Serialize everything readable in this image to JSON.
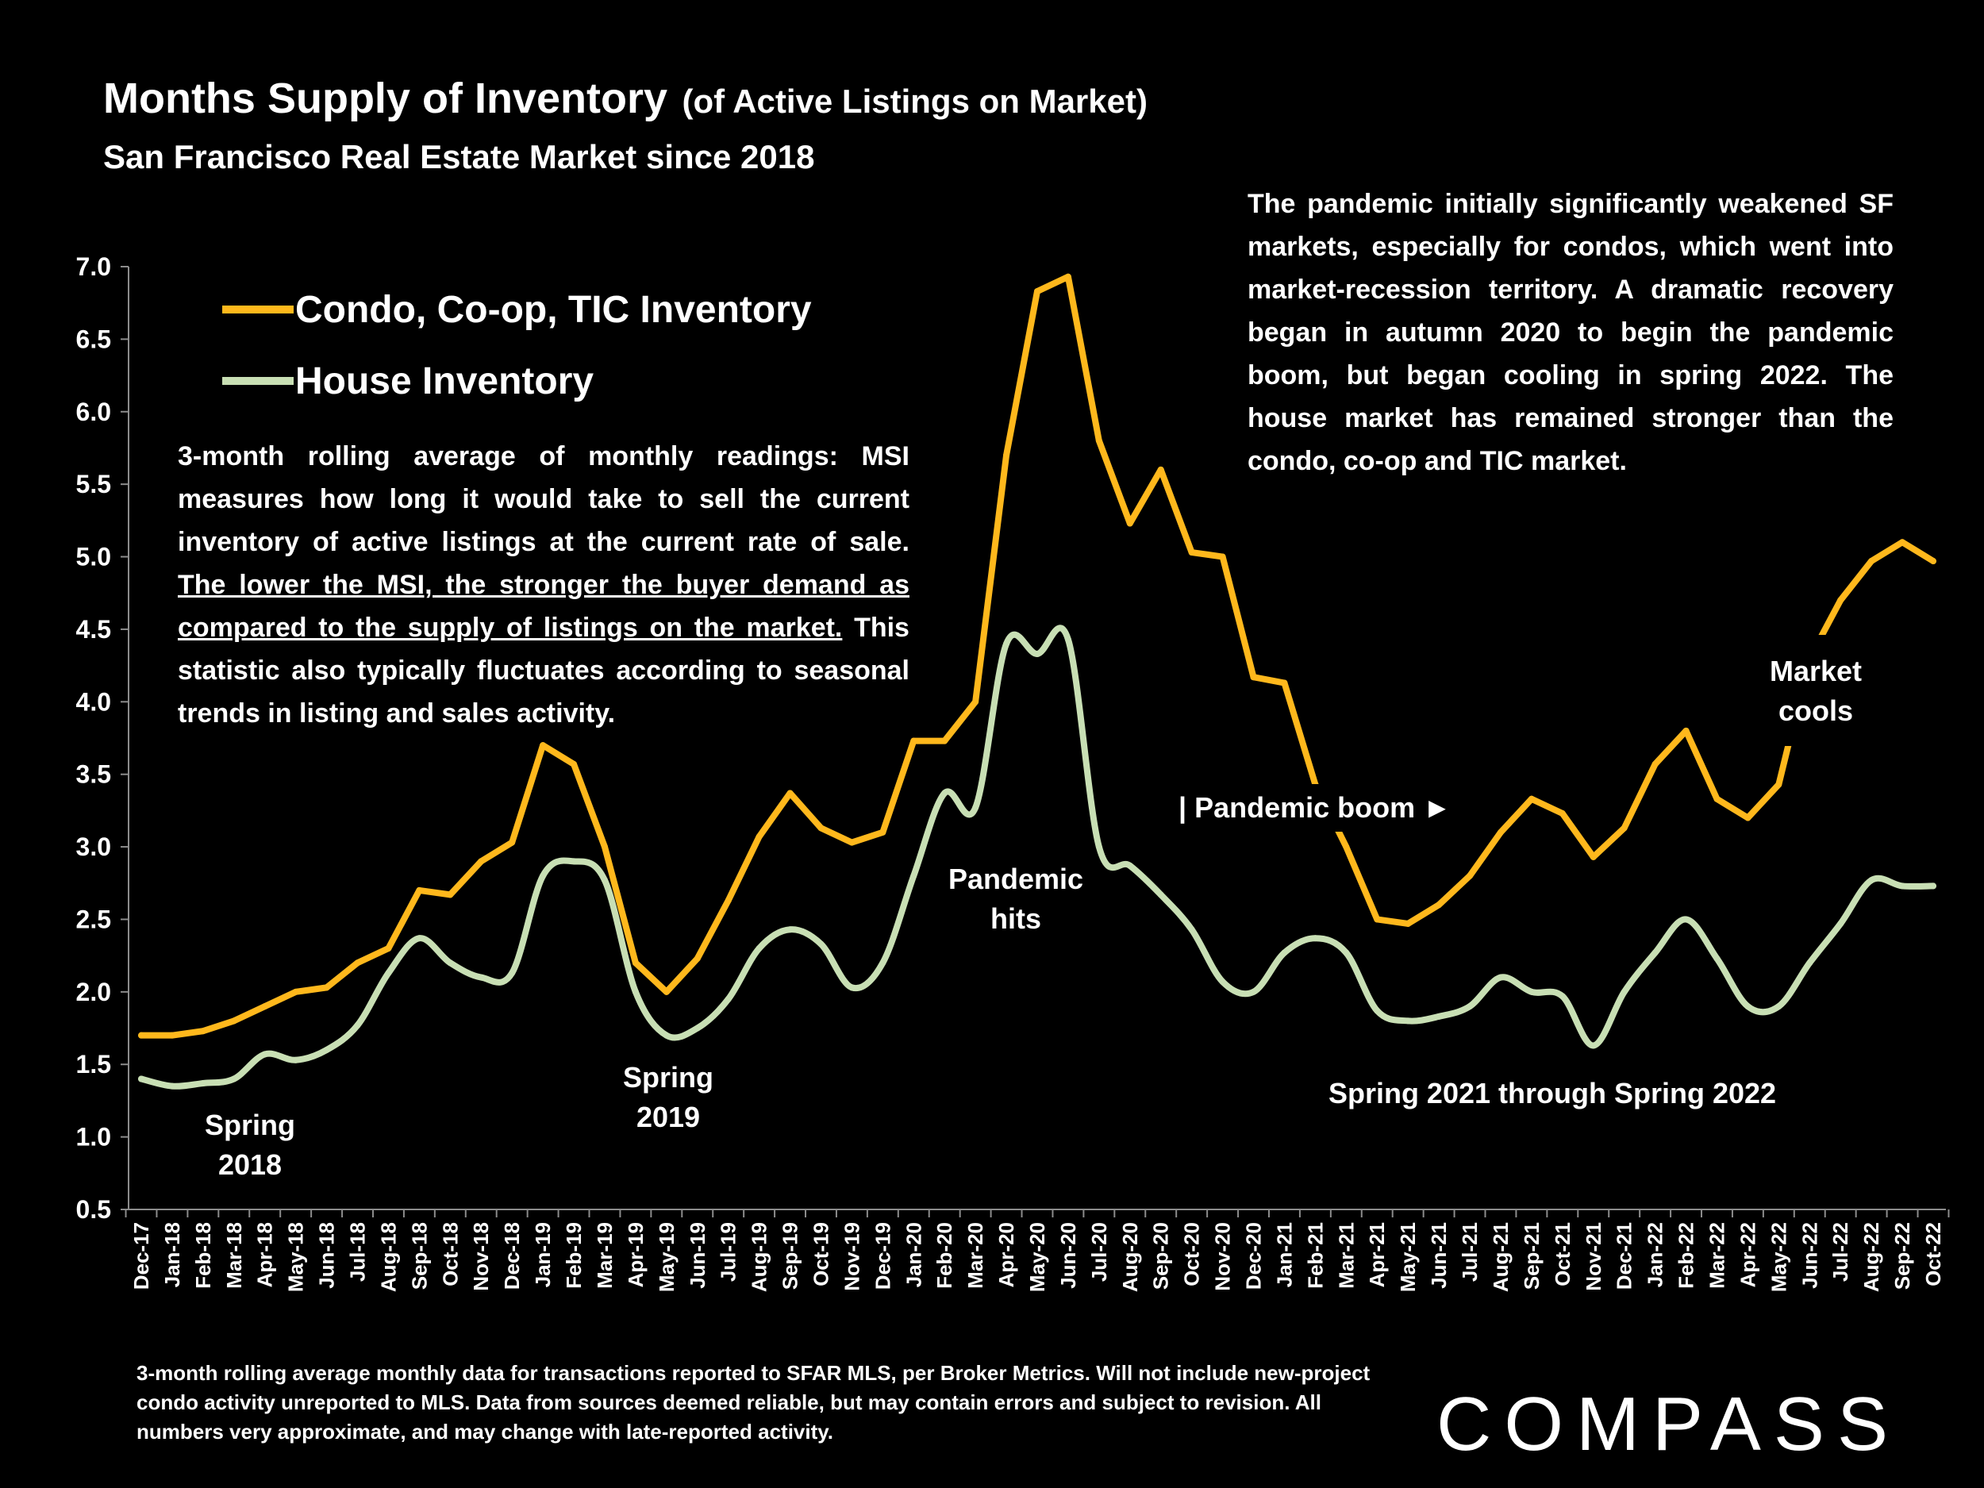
{
  "title": "Months Supply of Inventory",
  "title_paren": "(of Active Listings on Market)",
  "subtitle": "San Francisco Real Estate Market since 2018",
  "description_left": {
    "line1": "3-month rolling average of monthly readings: MSI measures how long it would take to sell the current inventory of active listings at the current rate of sale.",
    "underlined": "The lower the MSI, the stronger the buyer demand as compared to the supply of listings on the market.",
    "line3": "This statistic also typically fluctuates according to seasonal trends in listing and sales activity."
  },
  "description_right": "The pandemic initially significantly weakened SF markets, especially for condos, which went into market-recession territory. A dramatic recovery began in autumn 2020 to begin the pandemic boom, but began cooling in spring 2022. The house market has remained stronger than the condo, co-op and TIC market.",
  "footnote": "3-month rolling average monthly data for transactions reported to SFAR MLS, per Broker Metrics. Will not include new-project condo activity unreported to MLS. Data from sources deemed reliable, but may contain errors and subject to revision. All numbers very approximate, and may change with late-reported activity.",
  "logo": "COMPASS",
  "colors": {
    "condo": "#FFB81C",
    "house": "#C8DFB4",
    "background": "#000000",
    "axis": "#8C8C8C"
  },
  "chart_data": {
    "type": "line",
    "title": "Months Supply of Inventory (of Active Listings on Market)",
    "subtitle": "San Francisco Real Estate Market since 2018",
    "xlabel": "",
    "ylabel": "",
    "ylim": [
      0.5,
      7.0
    ],
    "yticks": [
      "0.5",
      "1.0",
      "1.5",
      "2.0",
      "2.5",
      "3.0",
      "3.5",
      "4.0",
      "4.5",
      "5.0",
      "5.5",
      "6.0",
      "6.5",
      "7.0"
    ],
    "grid": false,
    "legend_position": "top-left",
    "categories": [
      "Dec-17",
      "Jan-18",
      "Feb-18",
      "Mar-18",
      "Apr-18",
      "May-18",
      "Jun-18",
      "Jul-18",
      "Aug-18",
      "Sep-18",
      "Oct-18",
      "Nov-18",
      "Dec-18",
      "Jan-19",
      "Feb-19",
      "Mar-19",
      "Apr-19",
      "May-19",
      "Jun-19",
      "Jul-19",
      "Aug-19",
      "Sep-19",
      "Oct-19",
      "Nov-19",
      "Dec-19",
      "Jan-20",
      "Feb-20",
      "Mar-20",
      "Apr-20",
      "May-20",
      "Jun-20",
      "Jul-20",
      "Aug-20",
      "Sep-20",
      "Oct-20",
      "Nov-20",
      "Dec-20",
      "Jan-21",
      "Feb-21",
      "Mar-21",
      "Apr-21",
      "May-21",
      "Jun-21",
      "Jul-21",
      "Aug-21",
      "Sep-21",
      "Oct-21",
      "Nov-21",
      "Dec-21",
      "Jan-22",
      "Feb-22",
      "Mar-22",
      "Apr-22",
      "May-22",
      "Jun-22",
      "Jul-22",
      "Aug-22",
      "Sep-22",
      "Oct-22"
    ],
    "series": [
      {
        "name": "Condo, Co-op, TIC Inventory",
        "color": "#FFB81C",
        "smooth": false,
        "values": [
          1.7,
          1.7,
          1.73,
          1.8,
          1.9,
          2.0,
          2.03,
          2.2,
          2.3,
          2.7,
          2.67,
          2.9,
          3.03,
          3.7,
          3.57,
          3.0,
          2.2,
          2.0,
          2.23,
          2.63,
          3.07,
          3.37,
          3.13,
          3.03,
          3.1,
          3.73,
          3.73,
          4.0,
          5.7,
          6.83,
          6.93,
          5.8,
          5.23,
          5.6,
          5.03,
          5.0,
          4.17,
          4.13,
          3.43,
          3.0,
          2.5,
          2.47,
          2.6,
          2.8,
          3.1,
          3.33,
          3.23,
          2.93,
          3.13,
          3.57,
          3.8,
          3.33,
          3.2,
          3.43,
          4.3,
          4.7,
          4.97,
          5.1,
          4.97
        ]
      },
      {
        "name": "House Inventory",
        "color": "#C8DFB4",
        "smooth": true,
        "values": [
          1.4,
          1.35,
          1.37,
          1.4,
          1.57,
          1.53,
          1.6,
          1.77,
          2.13,
          2.37,
          2.2,
          2.1,
          2.13,
          2.8,
          2.9,
          2.77,
          2.0,
          1.7,
          1.75,
          1.95,
          2.3,
          2.43,
          2.33,
          2.03,
          2.2,
          2.8,
          3.37,
          3.27,
          4.4,
          4.33,
          4.43,
          3.0,
          2.87,
          2.67,
          2.43,
          2.07,
          2.0,
          2.27,
          2.37,
          2.27,
          1.87,
          1.8,
          1.83,
          1.9,
          2.1,
          2.0,
          1.97,
          1.63,
          2.0,
          2.27,
          2.5,
          2.23,
          1.9,
          1.9,
          2.2,
          2.47,
          2.77,
          2.73,
          2.73
        ]
      }
    ],
    "annotations": {
      "spring2018": [
        "Spring",
        "2018"
      ],
      "spring2019": [
        "Spring",
        "2019"
      ],
      "pandemic_hits": [
        "Pandemic",
        "hits"
      ],
      "pandemic_boom": "| Pandemic boom ►",
      "market_cools": [
        "Market",
        "cools"
      ],
      "spring2021": "Spring 2021 through Spring 2022"
    }
  }
}
